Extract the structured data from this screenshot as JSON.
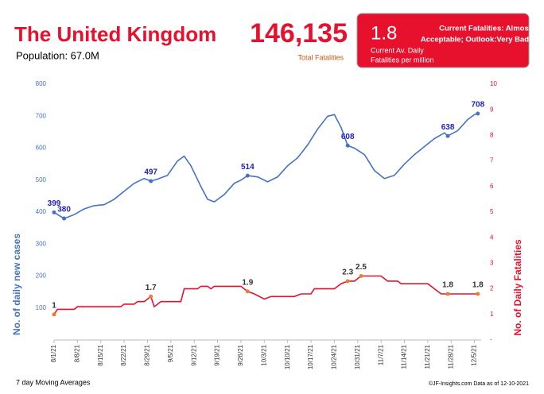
{
  "header": {
    "title": "The United Kingdom",
    "population": "Population: 67.0M",
    "total_fatalities": "146,135",
    "total_label": "Total Fatalities",
    "box_value": "1.8",
    "box_label_1": "Current Av. Daily",
    "box_label_2": "Fatalities per million",
    "box_status_1": "Current Fatalities: Almost",
    "box_status_2": "Acceptable; Outlook:Very Bad"
  },
  "footer": {
    "left": "7 day Moving Averages",
    "right": "©JF-Insights.com  Data as of 12-10-2021"
  },
  "chart_data": {
    "type": "line",
    "ylabel": "No. of daily new  cases",
    "y2label": "No. of Daily Fatalities",
    "xlim": [
      "8/1/21",
      "12/7/21"
    ],
    "xticks": [
      "8/1/21",
      "8/8/21",
      "8/15/21",
      "8/22/21",
      "8/29/21",
      "9/5/21",
      "9/12/21",
      "9/19/21",
      "9/26/21",
      "10/3/21",
      "10/10/21",
      "10/17/21",
      "10/24/21",
      "10/31/21",
      "11/7/21",
      "11/14/21",
      "11/21/21",
      "11/28/21",
      "12/5/21"
    ],
    "ylim": [
      0,
      800
    ],
    "yticks": [
      100,
      200,
      300,
      400,
      500,
      600,
      700,
      800
    ],
    "y2lim": [
      0,
      10
    ],
    "y2ticks": [
      {
        "value": 0,
        "label": "-"
      },
      1,
      2,
      3,
      4,
      5,
      6,
      7,
      8,
      9,
      10
    ],
    "series": [
      {
        "name": "Daily new cases",
        "color": "#4472c4",
        "axis": "y",
        "x": [
          "8/1/21",
          "8/4/21",
          "8/7/21",
          "8/10/21",
          "8/13/21",
          "8/16/21",
          "8/19/21",
          "8/22/21",
          "8/25/21",
          "8/28/21",
          "8/30/21",
          "9/1/21",
          "9/4/21",
          "9/7/21",
          "9/9/21",
          "9/11/21",
          "9/14/21",
          "9/16/21",
          "9/18/21",
          "9/21/21",
          "9/24/21",
          "9/26/21",
          "9/28/21",
          "10/1/21",
          "10/4/21",
          "10/7/21",
          "10/10/21",
          "10/13/21",
          "10/16/21",
          "10/19/21",
          "10/22/21",
          "10/24/21",
          "10/26/21",
          "10/28/21",
          "10/30/21",
          "11/2/21",
          "11/5/21",
          "11/8/21",
          "11/11/21",
          "11/14/21",
          "11/17/21",
          "11/20/21",
          "11/23/21",
          "11/26/21",
          "11/27/21",
          "11/30/21",
          "12/3/21",
          "12/5/21",
          "12/6/21"
        ],
        "values": [
          399,
          380,
          392,
          410,
          420,
          423,
          440,
          465,
          490,
          505,
          497,
          503,
          515,
          560,
          575,
          545,
          480,
          440,
          432,
          455,
          490,
          500,
          514,
          510,
          495,
          510,
          545,
          570,
          610,
          660,
          700,
          705,
          665,
          608,
          600,
          580,
          530,
          505,
          515,
          550,
          580,
          605,
          630,
          648,
          638,
          655,
          690,
          705,
          708
        ]
      },
      {
        "name": "Daily fatalities",
        "color": "#e8112d",
        "axis": "y2",
        "x": [
          "8/1/21",
          "8/2/21",
          "8/7/21",
          "8/8/21",
          "8/21/21",
          "8/22/21",
          "8/25/21",
          "8/26/21",
          "8/28/21",
          "8/29/21",
          "8/30/21",
          "8/31/21",
          "9/2/21",
          "9/8/21",
          "9/9/21",
          "9/13/21",
          "9/14/21",
          "9/16/21",
          "9/17/21",
          "9/18/21",
          "9/26/21",
          "9/27/21",
          "9/28/21",
          "9/30/21",
          "10/3/21",
          "10/5/21",
          "10/12/21",
          "10/14/21",
          "10/17/21",
          "10/18/21",
          "10/24/21",
          "10/26/21",
          "10/28/21",
          "10/30/21",
          "10/31/21",
          "11/1/21",
          "11/7/21",
          "11/9/21",
          "11/12/21",
          "11/13/21",
          "11/21/21",
          "11/23/21",
          "11/25/21",
          "11/27/21",
          "12/6/21"
        ],
        "values": [
          1,
          1.2,
          1.2,
          1.3,
          1.3,
          1.4,
          1.4,
          1.5,
          1.5,
          1.6,
          1.7,
          1.3,
          1.5,
          1.5,
          2.0,
          2.0,
          2.1,
          2.1,
          2.0,
          2.1,
          2.1,
          2.0,
          1.9,
          1.8,
          1.6,
          1.7,
          1.7,
          1.8,
          1.8,
          2.0,
          2.0,
          2.2,
          2.3,
          2.3,
          2.4,
          2.5,
          2.5,
          2.3,
          2.3,
          2.2,
          2.2,
          2.0,
          1.8,
          1.8,
          1.8
        ]
      }
    ],
    "markers": [
      {
        "series": 0,
        "color": "#4472c4",
        "text_color": "#1f1fbf",
        "points": [
          {
            "x": "8/1/21",
            "value": 399
          },
          {
            "x": "8/4/21",
            "value": 380
          },
          {
            "x": "8/30/21",
            "value": 497
          },
          {
            "x": "9/28/21",
            "value": 514
          },
          {
            "x": "10/28/21",
            "value": 608
          },
          {
            "x": "11/27/21",
            "value": 638
          },
          {
            "x": "12/6/21",
            "value": 708
          }
        ]
      },
      {
        "series": 1,
        "color": "#ed7d31",
        "text_color": "#333333",
        "points": [
          {
            "x": "8/1/21",
            "value": 1
          },
          {
            "x": "8/30/21",
            "value": 1.7
          },
          {
            "x": "9/28/21",
            "value": 1.9
          },
          {
            "x": "10/28/21",
            "value": 2.3
          },
          {
            "x": "11/1/21",
            "value": 2.5
          },
          {
            "x": "11/27/21",
            "value": 1.8
          },
          {
            "x": "12/6/21",
            "value": 1.8
          }
        ]
      }
    ]
  }
}
